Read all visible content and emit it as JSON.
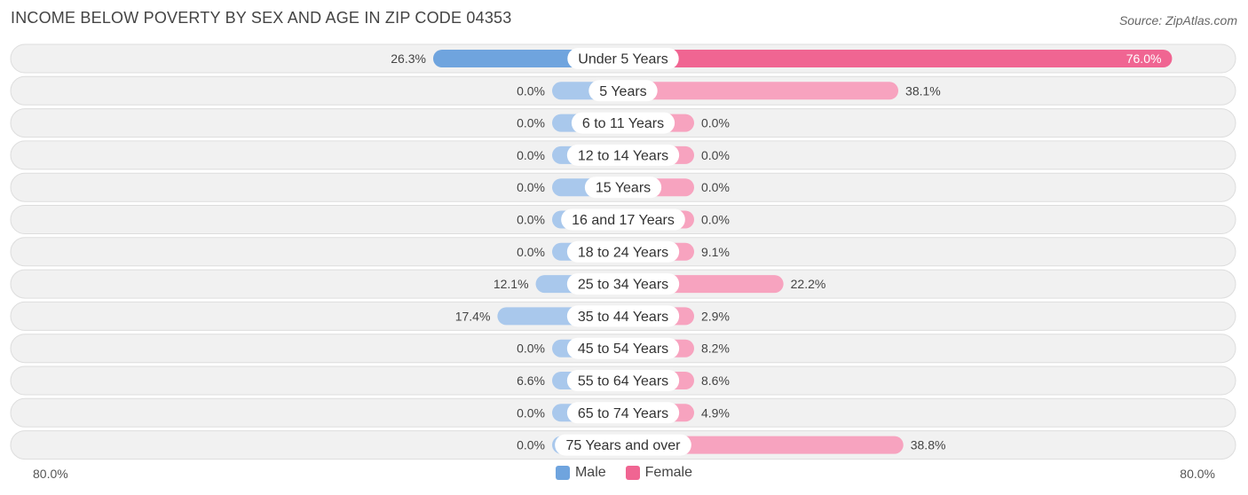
{
  "title": "INCOME BELOW POVERTY BY SEX AND AGE IN ZIP CODE 04353",
  "source": "Source: ZipAtlas.com",
  "colors": {
    "male_strong": "#6fa4de",
    "male_light": "#a9c8ec",
    "female_strong": "#f06592",
    "female_light": "#f7a3bf",
    "row_bg": "#f1f1f1",
    "row_border": "#dddddd"
  },
  "chart_data": {
    "type": "bar",
    "orientation": "horizontal-diverging",
    "categories": [
      "Under 5 Years",
      "5 Years",
      "6 to 11 Years",
      "12 to 14 Years",
      "15 Years",
      "16 and 17 Years",
      "18 to 24 Years",
      "25 to 34 Years",
      "35 to 44 Years",
      "45 to 54 Years",
      "55 to 64 Years",
      "65 to 74 Years",
      "75 Years and over"
    ],
    "series": [
      {
        "name": "Male",
        "values": [
          26.3,
          0.0,
          0.0,
          0.0,
          0.0,
          0.0,
          0.0,
          12.1,
          17.4,
          0.0,
          6.6,
          0.0,
          0.0
        ]
      },
      {
        "name": "Female",
        "values": [
          76.0,
          38.1,
          0.0,
          0.0,
          0.0,
          0.0,
          9.1,
          22.2,
          2.9,
          8.2,
          8.6,
          4.9,
          38.8
        ]
      }
    ],
    "value_labels": {
      "male": [
        "26.3%",
        "0.0%",
        "0.0%",
        "0.0%",
        "0.0%",
        "0.0%",
        "0.0%",
        "12.1%",
        "17.4%",
        "0.0%",
        "6.6%",
        "0.0%",
        "0.0%"
      ],
      "female": [
        "76.0%",
        "38.1%",
        "0.0%",
        "0.0%",
        "0.0%",
        "0.0%",
        "9.1%",
        "22.2%",
        "2.9%",
        "8.2%",
        "8.6%",
        "4.9%",
        "38.8%"
      ]
    },
    "xlim": [
      0,
      80
    ],
    "axis_min_label": "80.0%",
    "axis_max_label": "80.0%",
    "legend": [
      "Male",
      "Female"
    ],
    "legend_position": "bottom-center"
  }
}
